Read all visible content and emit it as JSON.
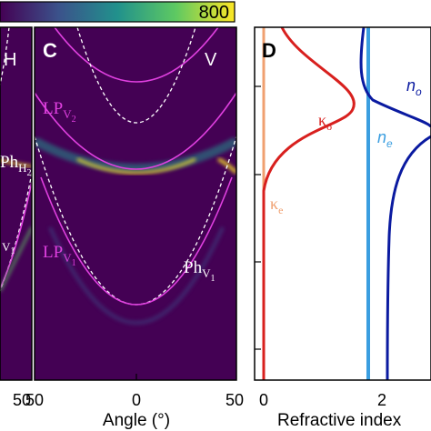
{
  "colorbar": {
    "max_label": "800"
  },
  "panels": {
    "left": {
      "letter": "",
      "pol_label": "H",
      "annotations": [
        {
          "text": "Ph",
          "sub": "H",
          "subsub": "2"
        },
        {
          "text": "",
          "sub": "V",
          "subsub": "1"
        }
      ]
    },
    "c": {
      "letter": "C",
      "pol_label": "V",
      "annotations": [
        {
          "text": "LP",
          "sub": "V",
          "subsub": "2"
        },
        {
          "text": "LP",
          "sub": "V",
          "subsub": "1"
        },
        {
          "text": "Ph",
          "sub": "V",
          "subsub": "1"
        }
      ]
    },
    "d": {
      "letter": "D",
      "annotations": [
        {
          "text": "n",
          "sub": "o"
        },
        {
          "text": "n",
          "sub": "e"
        },
        {
          "text": "κ",
          "sub": "o"
        },
        {
          "text": "κ",
          "sub": "e"
        }
      ]
    }
  },
  "x_axes": {
    "left_ticks": [
      "50"
    ],
    "c_ticks": [
      "50",
      "0",
      "50"
    ],
    "c_label": "Angle (°)",
    "d_ticks": [
      "0",
      "2"
    ],
    "d_label": "Refractive index"
  },
  "colors": {
    "background": "#440154",
    "photon": "#ffffff",
    "polariton": "#e040e0",
    "ko": "#d8201e",
    "ke": "#f0a070",
    "no": "#0a1aa0",
    "ne": "#3a9ee0"
  },
  "chart_data": [
    {
      "type": "heatmap",
      "title": "C",
      "xlabel": "Angle (°)",
      "ylabel": "",
      "xlim": [
        -50,
        50
      ],
      "x_ticks": [
        "50",
        "0",
        "50"
      ],
      "colorbar_max": 800,
      "series": [
        {
          "name": "LP_V2",
          "x": [
            -50,
            -25,
            0,
            25,
            50
          ],
          "y_rel": [
            0.27,
            0.4,
            0.47,
            0.4,
            0.27
          ]
        },
        {
          "name": "LP_V1",
          "x": [
            -50,
            -25,
            0,
            25,
            50
          ],
          "y_rel": [
            0.05,
            0.37,
            0.75,
            0.37,
            0.05
          ]
        },
        {
          "name": "Ph_V1",
          "x": [
            -50,
            -25,
            0,
            25,
            50
          ],
          "y_rel": [
            0.0,
            0.3,
            0.73,
            0.3,
            0.0
          ]
        }
      ]
    },
    {
      "type": "line",
      "title": "D",
      "xlabel": "Refractive index",
      "ylabel": "",
      "xlim": [
        0,
        2.7
      ],
      "x_ticks": [
        "0",
        "2"
      ],
      "series": [
        {
          "name": "n_o",
          "x": [
            2.3,
            2.7,
            3.5,
            4.0,
            2.4,
            2.1
          ],
          "y_rel": [
            0.0,
            0.1,
            0.23,
            0.33,
            0.45,
            1.0
          ]
        },
        {
          "name": "n_e",
          "x": [
            1.78,
            1.78
          ],
          "y_rel": [
            0.0,
            1.0
          ]
        },
        {
          "name": "κ_o",
          "x": [
            0.5,
            1.0,
            1.5,
            0.6,
            0.1,
            0.0
          ],
          "y_rel": [
            0.0,
            0.1,
            0.23,
            0.35,
            0.5,
            1.0
          ]
        },
        {
          "name": "κ_e",
          "x": [
            0.05,
            0.05
          ],
          "y_rel": [
            0.0,
            1.0
          ]
        }
      ]
    }
  ]
}
